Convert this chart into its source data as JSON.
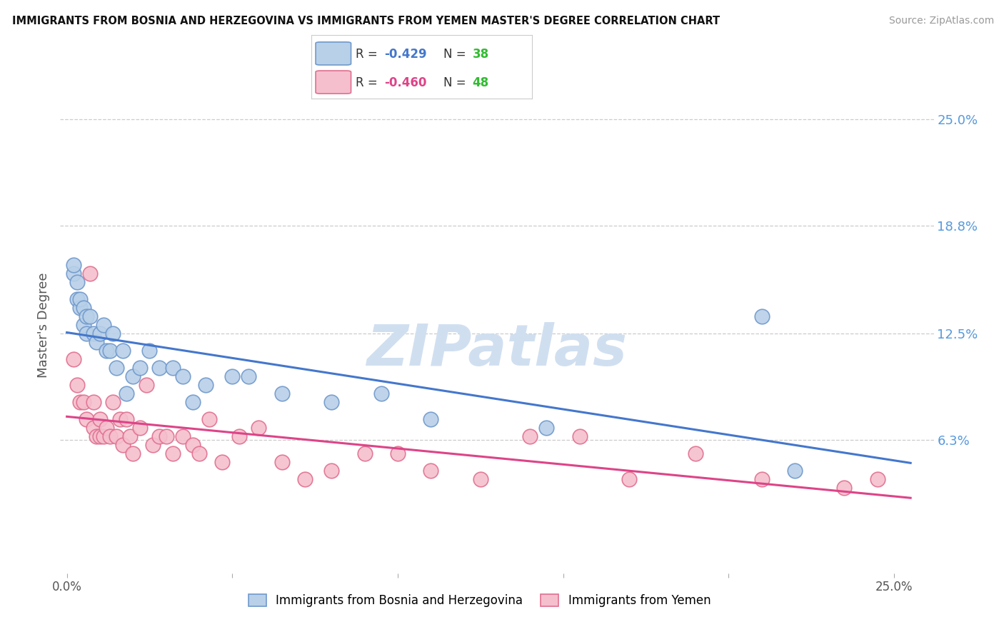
{
  "title": "IMMIGRANTS FROM BOSNIA AND HERZEGOVINA VS IMMIGRANTS FROM YEMEN MASTER'S DEGREE CORRELATION CHART",
  "source": "Source: ZipAtlas.com",
  "ylabel": "Master's Degree",
  "y_tick_labels_right": [
    "25.0%",
    "18.8%",
    "12.5%",
    "6.3%"
  ],
  "y_tick_values_right": [
    0.25,
    0.188,
    0.125,
    0.063
  ],
  "xlim": [
    -0.002,
    0.262
  ],
  "ylim": [
    -0.015,
    0.275
  ],
  "bosnia_color": "#b8d0e8",
  "bosnia_edge_color": "#7099cc",
  "yemen_color": "#f5bfce",
  "yemen_edge_color": "#e07090",
  "regression_bosnia_color": "#4477cc",
  "regression_yemen_color": "#dd4488",
  "watermark_color": "#d0dff0",
  "legend_r_bosnia": "-0.429",
  "legend_n_bosnia": "38",
  "legend_r_yemen": "-0.460",
  "legend_n_yemen": "48",
  "grid_color": "#cccccc",
  "background_color": "#ffffff",
  "right_axis_color": "#5599dd",
  "title_color": "#111111",
  "source_color": "#999999",
  "bosnia_x": [
    0.002,
    0.002,
    0.003,
    0.003,
    0.004,
    0.004,
    0.005,
    0.005,
    0.006,
    0.006,
    0.007,
    0.008,
    0.009,
    0.01,
    0.011,
    0.012,
    0.013,
    0.014,
    0.015,
    0.017,
    0.018,
    0.02,
    0.022,
    0.025,
    0.028,
    0.032,
    0.035,
    0.038,
    0.042,
    0.05,
    0.055,
    0.065,
    0.08,
    0.095,
    0.11,
    0.145,
    0.21,
    0.22
  ],
  "bosnia_y": [
    0.16,
    0.165,
    0.155,
    0.145,
    0.14,
    0.145,
    0.13,
    0.14,
    0.135,
    0.125,
    0.135,
    0.125,
    0.12,
    0.125,
    0.13,
    0.115,
    0.115,
    0.125,
    0.105,
    0.115,
    0.09,
    0.1,
    0.105,
    0.115,
    0.105,
    0.105,
    0.1,
    0.085,
    0.095,
    0.1,
    0.1,
    0.09,
    0.085,
    0.09,
    0.075,
    0.07,
    0.135,
    0.045
  ],
  "yemen_x": [
    0.002,
    0.003,
    0.004,
    0.005,
    0.006,
    0.007,
    0.008,
    0.008,
    0.009,
    0.01,
    0.01,
    0.011,
    0.012,
    0.013,
    0.014,
    0.015,
    0.016,
    0.017,
    0.018,
    0.019,
    0.02,
    0.022,
    0.024,
    0.026,
    0.028,
    0.03,
    0.032,
    0.035,
    0.038,
    0.04,
    0.043,
    0.047,
    0.052,
    0.058,
    0.065,
    0.072,
    0.08,
    0.09,
    0.1,
    0.11,
    0.125,
    0.14,
    0.155,
    0.17,
    0.19,
    0.21,
    0.235,
    0.245
  ],
  "yemen_y": [
    0.11,
    0.095,
    0.085,
    0.085,
    0.075,
    0.16,
    0.085,
    0.07,
    0.065,
    0.065,
    0.075,
    0.065,
    0.07,
    0.065,
    0.085,
    0.065,
    0.075,
    0.06,
    0.075,
    0.065,
    0.055,
    0.07,
    0.095,
    0.06,
    0.065,
    0.065,
    0.055,
    0.065,
    0.06,
    0.055,
    0.075,
    0.05,
    0.065,
    0.07,
    0.05,
    0.04,
    0.045,
    0.055,
    0.055,
    0.045,
    0.04,
    0.065,
    0.065,
    0.04,
    0.055,
    0.04,
    0.035,
    0.04
  ]
}
